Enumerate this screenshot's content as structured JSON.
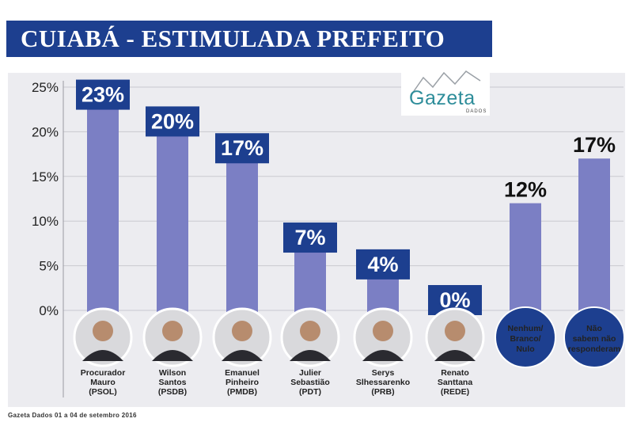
{
  "title": "CUIABÁ - ESTIMULADA PREFEITO",
  "logo": {
    "name": "Gazeta",
    "sub": "DADOS"
  },
  "footer": "Gazeta Dados 01 a 04 de setembro 2016",
  "colors": {
    "title_bg": "#1d3f8f",
    "bar": "#7b7fc4",
    "label_box": "#1d3f8f",
    "circle": "#1d3f8f"
  },
  "chart_data": {
    "type": "bar",
    "title": "CUIABÁ - ESTIMULADA PREFEITO",
    "ylim": [
      0,
      25
    ],
    "y_ticks": [
      "0%",
      "5%",
      "10%",
      "15%",
      "20%",
      "25%"
    ],
    "grid": true,
    "categories": [
      {
        "lines": [
          "Procurador",
          "Mauro",
          "(PSOL)"
        ],
        "value": 23,
        "label": "23%",
        "kind": "candidate"
      },
      {
        "lines": [
          "Wilson",
          "Santos",
          "(PSDB)"
        ],
        "value": 20,
        "label": "20%",
        "kind": "candidate"
      },
      {
        "lines": [
          "Emanuel",
          "Pinheiro",
          "(PMDB)"
        ],
        "value": 17,
        "label": "17%",
        "kind": "candidate"
      },
      {
        "lines": [
          "Julier",
          "Sebastião",
          "(PDT)"
        ],
        "value": 7,
        "label": "7%",
        "kind": "candidate"
      },
      {
        "lines": [
          "Serys",
          "Slhessarenko",
          "(PRB)"
        ],
        "value": 4,
        "label": "4%",
        "kind": "candidate"
      },
      {
        "lines": [
          "Renato",
          "Santtana",
          "(REDE)"
        ],
        "value": 0,
        "label": "0%",
        "kind": "candidate"
      },
      {
        "lines": [
          "Nenhum/",
          "Branco/",
          "Nulo"
        ],
        "value": 12,
        "label": "12%",
        "kind": "other"
      },
      {
        "lines": [
          "Não",
          "sabem não",
          "responderam"
        ],
        "value": 17,
        "label": "17%",
        "kind": "other"
      }
    ]
  }
}
